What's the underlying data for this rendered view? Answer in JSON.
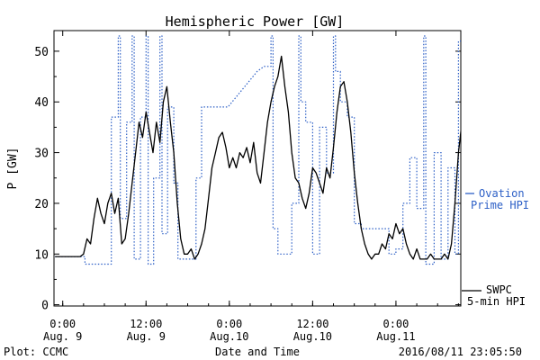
{
  "chart_data": {
    "type": "line",
    "title": "Hemispheric Power [GW]",
    "ylabel": "P [GW]",
    "xlabel": "Date and Time",
    "ylim": [
      0,
      54
    ],
    "xlim": [
      0,
      57.5
    ],
    "yticks": [
      0,
      10,
      20,
      30,
      40,
      50
    ],
    "xticks": [
      {
        "x": 0,
        "time": "0:00",
        "date": "Aug. 9"
      },
      {
        "x": 12,
        "time": "12:00",
        "date": "Aug. 9"
      },
      {
        "x": 24,
        "time": "0:00",
        "date": "Aug.10"
      },
      {
        "x": 36,
        "time": "12:00",
        "date": "Aug.10"
      },
      {
        "x": 48,
        "time": "0:00",
        "date": "Aug.11"
      },
      {
        "x": 60,
        "time": "12:00",
        "date": "Aug.11"
      }
    ],
    "grid": false,
    "legend_position": "right",
    "series": [
      {
        "name": "Ovation Prime HPI",
        "legend_lines": [
          "Ovation",
          "Prime HPI"
        ],
        "color": "#2c5fc6",
        "style": "dotted",
        "points": [
          [
            -1.1,
            9.5
          ],
          [
            3.2,
            9.5
          ],
          [
            3.2,
            8
          ],
          [
            7,
            8
          ],
          [
            7,
            37
          ],
          [
            8,
            37
          ],
          [
            8,
            53
          ],
          [
            8.3,
            53
          ],
          [
            8.3,
            17
          ],
          [
            9.2,
            17
          ],
          [
            9.2,
            36
          ],
          [
            10,
            36
          ],
          [
            10,
            53
          ],
          [
            10.3,
            53
          ],
          [
            10.3,
            9
          ],
          [
            11.2,
            9
          ],
          [
            11.2,
            37
          ],
          [
            12,
            37
          ],
          [
            12,
            53
          ],
          [
            12.3,
            53
          ],
          [
            12.3,
            8
          ],
          [
            13.1,
            8
          ],
          [
            13.1,
            25
          ],
          [
            14,
            25
          ],
          [
            14,
            53
          ],
          [
            14.3,
            53
          ],
          [
            14.3,
            14
          ],
          [
            15.1,
            14
          ],
          [
            15.1,
            39
          ],
          [
            16,
            39
          ],
          [
            16,
            24
          ],
          [
            16.6,
            24
          ],
          [
            16.6,
            9
          ],
          [
            18,
            9
          ],
          [
            18,
            9
          ],
          [
            19.2,
            9
          ],
          [
            19.2,
            25
          ],
          [
            20,
            25
          ],
          [
            20,
            39
          ],
          [
            23.8,
            39
          ],
          [
            28,
            46
          ],
          [
            29,
            47
          ],
          [
            30,
            47
          ],
          [
            30,
            53
          ],
          [
            30.3,
            53
          ],
          [
            30.3,
            15
          ],
          [
            31,
            15
          ],
          [
            31,
            10
          ],
          [
            33,
            10
          ],
          [
            33,
            20
          ],
          [
            34,
            20
          ],
          [
            34,
            53
          ],
          [
            34.3,
            53
          ],
          [
            34.3,
            40
          ],
          [
            35,
            40
          ],
          [
            35,
            36
          ],
          [
            36,
            36
          ],
          [
            36,
            10
          ],
          [
            37,
            10
          ],
          [
            37,
            35
          ],
          [
            38,
            35
          ],
          [
            38,
            26
          ],
          [
            39,
            26
          ],
          [
            39,
            53
          ],
          [
            39.3,
            53
          ],
          [
            39.3,
            46
          ],
          [
            40,
            46
          ],
          [
            40,
            40
          ],
          [
            41,
            40
          ],
          [
            41,
            37
          ],
          [
            42,
            37
          ],
          [
            42,
            16
          ],
          [
            43,
            16
          ],
          [
            43,
            15
          ],
          [
            47,
            15
          ],
          [
            47,
            10
          ],
          [
            48,
            10
          ],
          [
            48,
            11
          ],
          [
            49,
            11
          ],
          [
            49,
            20
          ],
          [
            50,
            20
          ],
          [
            50,
            29
          ],
          [
            51,
            29
          ],
          [
            51,
            19
          ],
          [
            52,
            19
          ],
          [
            52,
            53
          ],
          [
            52.3,
            53
          ],
          [
            52.3,
            8
          ],
          [
            53.5,
            8
          ],
          [
            53.5,
            30
          ],
          [
            54.5,
            30
          ],
          [
            54.5,
            9
          ],
          [
            55.5,
            9
          ],
          [
            55.5,
            27
          ],
          [
            56.5,
            27
          ],
          [
            56.5,
            10
          ],
          [
            57,
            10
          ],
          [
            57,
            52
          ],
          [
            57.5,
            52
          ]
        ]
      },
      {
        "name": "SWPC 5-min HPI",
        "legend_lines": [
          "SWPC",
          "5-min HPI"
        ],
        "color": "#000000",
        "style": "solid",
        "points": [
          [
            -1.1,
            9.5
          ],
          [
            2.5,
            9.5
          ],
          [
            3,
            10
          ],
          [
            3.5,
            13
          ],
          [
            4,
            12
          ],
          [
            4.5,
            17
          ],
          [
            5,
            21
          ],
          [
            5.5,
            18
          ],
          [
            6,
            16
          ],
          [
            6.5,
            20
          ],
          [
            7,
            22
          ],
          [
            7.5,
            18
          ],
          [
            8,
            21
          ],
          [
            8.5,
            12
          ],
          [
            9,
            13
          ],
          [
            9.5,
            18
          ],
          [
            10,
            24
          ],
          [
            10.5,
            30
          ],
          [
            11,
            36
          ],
          [
            11.5,
            33
          ],
          [
            12,
            38
          ],
          [
            12.5,
            34
          ],
          [
            13,
            30
          ],
          [
            13.5,
            36
          ],
          [
            14,
            32
          ],
          [
            14.5,
            40
          ],
          [
            15,
            43
          ],
          [
            15.5,
            36
          ],
          [
            16,
            30
          ],
          [
            16.5,
            20
          ],
          [
            17,
            13
          ],
          [
            17.5,
            10
          ],
          [
            18,
            10
          ],
          [
            18.5,
            11
          ],
          [
            19,
            9
          ],
          [
            19.5,
            10
          ],
          [
            20,
            12
          ],
          [
            20.5,
            15
          ],
          [
            21,
            21
          ],
          [
            21.5,
            27
          ],
          [
            22,
            30
          ],
          [
            22.5,
            33
          ],
          [
            23,
            34
          ],
          [
            23.5,
            31
          ],
          [
            24,
            27
          ],
          [
            24.5,
            29
          ],
          [
            25,
            27
          ],
          [
            25.5,
            30
          ],
          [
            26,
            29
          ],
          [
            26.5,
            31
          ],
          [
            27,
            28
          ],
          [
            27.5,
            32
          ],
          [
            28,
            26
          ],
          [
            28.5,
            24
          ],
          [
            29,
            30
          ],
          [
            29.5,
            36
          ],
          [
            30,
            40
          ],
          [
            30.5,
            43
          ],
          [
            31,
            45
          ],
          [
            31.5,
            49
          ],
          [
            32,
            43
          ],
          [
            32.5,
            38
          ],
          [
            33,
            30
          ],
          [
            33.5,
            25
          ],
          [
            34,
            24
          ],
          [
            34.5,
            21
          ],
          [
            35,
            19
          ],
          [
            35.5,
            22
          ],
          [
            36,
            27
          ],
          [
            36.5,
            26
          ],
          [
            37,
            24
          ],
          [
            37.5,
            22
          ],
          [
            38,
            27
          ],
          [
            38.5,
            25
          ],
          [
            39,
            31
          ],
          [
            39.5,
            38
          ],
          [
            40,
            43
          ],
          [
            40.5,
            44
          ],
          [
            41,
            40
          ],
          [
            41.5,
            34
          ],
          [
            42,
            26
          ],
          [
            42.5,
            20
          ],
          [
            43,
            15
          ],
          [
            43.5,
            12
          ],
          [
            44,
            10
          ],
          [
            44.5,
            9
          ],
          [
            45,
            10
          ],
          [
            45.5,
            10
          ],
          [
            46,
            12
          ],
          [
            46.5,
            11
          ],
          [
            47,
            14
          ],
          [
            47.5,
            13
          ],
          [
            48,
            16
          ],
          [
            48.5,
            14
          ],
          [
            49,
            15
          ],
          [
            49.5,
            12
          ],
          [
            50,
            10
          ],
          [
            50.5,
            9
          ],
          [
            51,
            11
          ],
          [
            51.5,
            9
          ],
          [
            52,
            9
          ],
          [
            52.5,
            9
          ],
          [
            53,
            10
          ],
          [
            53.5,
            9
          ],
          [
            54,
            9
          ],
          [
            54.5,
            9
          ],
          [
            55,
            10
          ],
          [
            55.5,
            9
          ],
          [
            56,
            12
          ],
          [
            56.5,
            20
          ],
          [
            57,
            30
          ],
          [
            57.5,
            36
          ],
          [
            58,
            42
          ],
          [
            58.5,
            40
          ],
          [
            59,
            30
          ],
          [
            59.5,
            22
          ],
          [
            60,
            14
          ],
          [
            60.5,
            15
          ],
          [
            61,
            20
          ]
        ]
      }
    ]
  },
  "footer": {
    "left": "Plot: CCMC",
    "right": "2016/08/11 23:05:50"
  },
  "colors": {
    "ovation": "#2c5fc6",
    "swpc": "#000000",
    "axis": "#000000",
    "background": "#ffffff"
  }
}
